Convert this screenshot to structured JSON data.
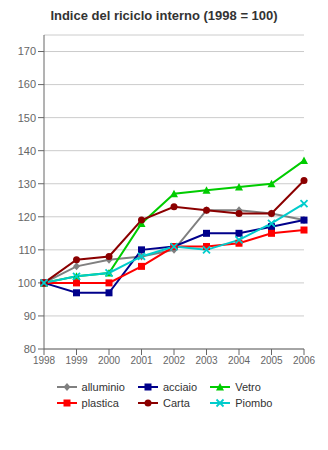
{
  "chart_data": {
    "type": "line",
    "title": "Indice del riciclo interno (1998 = 100)",
    "x": [
      1998,
      1999,
      2000,
      2001,
      2002,
      2003,
      2004,
      2005,
      2006
    ],
    "series": [
      {
        "name": "alluminio",
        "color": "#808080",
        "marker": "diamond",
        "line_style": "solid",
        "values": [
          100,
          105,
          107,
          108,
          110,
          122,
          122,
          121,
          119
        ]
      },
      {
        "name": "acciaio",
        "color": "#00008B",
        "marker": "square",
        "line_style": "solid",
        "values": [
          100,
          97,
          97,
          110,
          111,
          115,
          115,
          117,
          119
        ]
      },
      {
        "name": "Vetro",
        "color": "#00CC00",
        "marker": "triangle",
        "line_style": "solid",
        "values": [
          100,
          102,
          103,
          118,
          127,
          128,
          129,
          130,
          137
        ]
      },
      {
        "name": "plastica",
        "color": "#FF0000",
        "marker": "square",
        "line_style": "solid",
        "values": [
          100,
          100,
          100,
          105,
          111,
          111,
          112,
          115,
          116
        ]
      },
      {
        "name": "Carta",
        "color": "#8B0000",
        "marker": "circle",
        "line_style": "solid",
        "values": [
          100,
          107,
          108,
          119,
          123,
          122,
          121,
          121,
          131
        ]
      },
      {
        "name": "Piombo",
        "color": "#00CCCC",
        "marker": "x",
        "line_style": "solid",
        "values": [
          100,
          102,
          103,
          108,
          111,
          110,
          113,
          118,
          124
        ]
      }
    ],
    "xlim": [
      1998,
      2006
    ],
    "xticks": [
      1998,
      1999,
      2000,
      2001,
      2002,
      2003,
      2004,
      2005,
      2006
    ],
    "ylim": [
      80,
      175
    ],
    "yticks": [
      80,
      90,
      100,
      110,
      120,
      130,
      140,
      150,
      160,
      170
    ],
    "grid": true,
    "legend": "bottom"
  }
}
